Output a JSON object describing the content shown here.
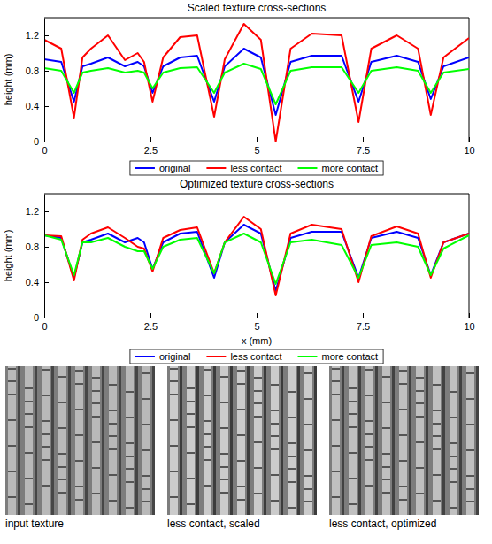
{
  "chart_data": [
    {
      "type": "line",
      "title": "Scaled texture cross-sections",
      "y_label": "height (mm)",
      "x": [
        0,
        0.4,
        0.7,
        0.9,
        1.1,
        1.5,
        1.9,
        2.2,
        2.35,
        2.55,
        2.8,
        3.2,
        3.6,
        4.0,
        4.25,
        4.7,
        5.1,
        5.45,
        5.8,
        6.3,
        7.0,
        7.4,
        7.7,
        8.3,
        8.8,
        9.1,
        9.4,
        10
      ],
      "xlim": [
        0,
        10
      ],
      "xticks": [
        0,
        2.5,
        5,
        7.5,
        10
      ],
      "ylim": [
        0,
        1.4
      ],
      "yticks": [
        0,
        0.4,
        0.8,
        1.2
      ],
      "legend": "bottom",
      "series": [
        {
          "name": "original",
          "color": "#0000ff",
          "values": [
            0.93,
            0.9,
            0.45,
            0.85,
            0.88,
            0.95,
            0.85,
            0.9,
            0.85,
            0.55,
            0.85,
            0.95,
            0.97,
            0.45,
            0.85,
            1.05,
            0.95,
            0.3,
            0.9,
            0.97,
            0.97,
            0.45,
            0.9,
            0.97,
            0.9,
            0.48,
            0.85,
            0.95
          ]
        },
        {
          "name": "less contact",
          "color": "#ff0000",
          "values": [
            1.15,
            1.05,
            0.27,
            0.95,
            1.05,
            1.2,
            0.92,
            1.0,
            0.9,
            0.45,
            0.95,
            1.18,
            1.2,
            0.28,
            0.93,
            1.33,
            1.15,
            0.0,
            1.05,
            1.22,
            1.2,
            0.22,
            1.05,
            1.2,
            1.05,
            0.3,
            0.95,
            1.17
          ]
        },
        {
          "name": "more contact",
          "color": "#00ff00",
          "values": [
            0.83,
            0.8,
            0.55,
            0.78,
            0.8,
            0.83,
            0.78,
            0.8,
            0.78,
            0.6,
            0.78,
            0.83,
            0.84,
            0.55,
            0.78,
            0.88,
            0.82,
            0.42,
            0.8,
            0.84,
            0.84,
            0.55,
            0.8,
            0.84,
            0.8,
            0.55,
            0.78,
            0.82
          ]
        }
      ]
    },
    {
      "type": "line",
      "title": "Optimized texture cross-sections",
      "y_label": "height (mm)",
      "x_label": "x (mm)",
      "x": [
        0,
        0.4,
        0.7,
        0.9,
        1.1,
        1.5,
        1.9,
        2.2,
        2.35,
        2.55,
        2.8,
        3.2,
        3.6,
        4.0,
        4.25,
        4.7,
        5.1,
        5.45,
        5.8,
        6.3,
        7.0,
        7.4,
        7.7,
        8.3,
        8.8,
        9.1,
        9.4,
        10
      ],
      "xlim": [
        0,
        10
      ],
      "xticks": [
        0,
        2.5,
        5,
        7.5,
        10
      ],
      "ylim": [
        0,
        1.4
      ],
      "yticks": [
        0,
        0.4,
        0.8,
        1.2
      ],
      "legend": "bottom",
      "series": [
        {
          "name": "original",
          "color": "#0000ff",
          "values": [
            0.93,
            0.9,
            0.45,
            0.85,
            0.88,
            0.95,
            0.85,
            0.9,
            0.85,
            0.55,
            0.85,
            0.95,
            0.97,
            0.45,
            0.85,
            1.05,
            0.95,
            0.3,
            0.9,
            0.97,
            0.97,
            0.45,
            0.9,
            0.97,
            0.9,
            0.48,
            0.85,
            0.95
          ]
        },
        {
          "name": "less contact",
          "color": "#ff0000",
          "values": [
            0.93,
            0.92,
            0.42,
            0.88,
            0.95,
            1.02,
            0.9,
            0.8,
            0.78,
            0.52,
            0.9,
            0.99,
            1.02,
            0.5,
            0.85,
            1.14,
            1.0,
            0.25,
            0.95,
            1.05,
            1.0,
            0.4,
            0.92,
            1.03,
            0.95,
            0.45,
            0.85,
            0.95
          ]
        },
        {
          "name": "more contact",
          "color": "#00ff00",
          "values": [
            0.93,
            0.88,
            0.48,
            0.85,
            0.85,
            0.9,
            0.8,
            0.75,
            0.75,
            0.55,
            0.8,
            0.88,
            0.9,
            0.5,
            0.85,
            0.95,
            0.85,
            0.38,
            0.85,
            0.88,
            0.82,
            0.45,
            0.82,
            0.85,
            0.8,
            0.48,
            0.78,
            0.93
          ]
        }
      ]
    }
  ],
  "image_captions": [
    "input texture",
    "less contact, scaled",
    "less contact, optimized"
  ]
}
